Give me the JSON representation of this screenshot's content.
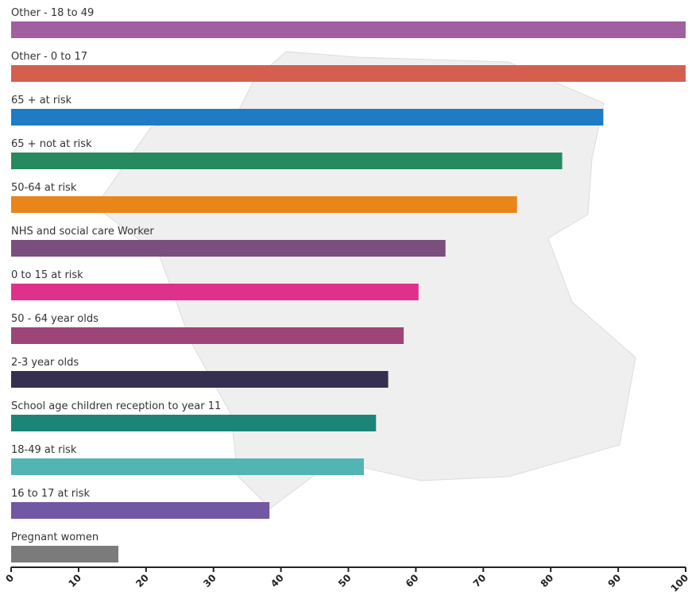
{
  "chart_data": {
    "type": "hbar",
    "categories": [
      "Other - 18 to 49",
      "Other - 0 to 17",
      "65 + at risk",
      "65 + not at risk",
      "50-64 at risk",
      "NHS and social care Worker",
      "0 to 15 at risk",
      "50 - 64 year olds",
      "2-3 year olds",
      "School age children reception to year 11",
      "18-49 at risk",
      "16 to 17 at risk",
      "Pregnant women"
    ],
    "values": [
      100,
      100,
      87.8,
      81.7,
      75.0,
      64.4,
      60.4,
      58.2,
      55.9,
      54.1,
      52.3,
      38.3,
      15.9
    ],
    "colors": [
      "#a05fa0",
      "#d45f4f",
      "#1f7bc4",
      "#268a5e",
      "#e8861a",
      "#7a4f7d",
      "#e0318a",
      "#9c4677",
      "#35304f",
      "#1c857a",
      "#52b5b3",
      "#7257a3",
      "#7b7b7b"
    ],
    "xlim": [
      0,
      100
    ],
    "xticks": [
      0,
      10,
      20,
      30,
      40,
      50,
      60,
      70,
      80,
      90,
      100
    ]
  }
}
